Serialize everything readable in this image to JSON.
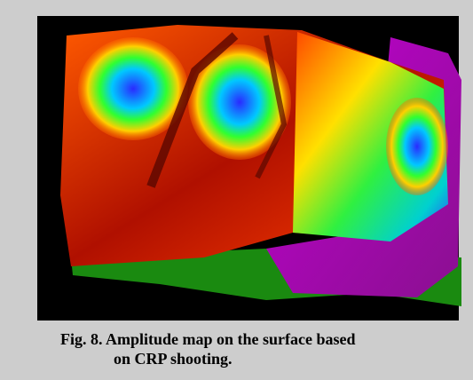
{
  "figure": {
    "caption_lines": [
      "Fig. 8. Amplitude map on the surface based",
      "on CRP shooting."
    ]
  }
}
